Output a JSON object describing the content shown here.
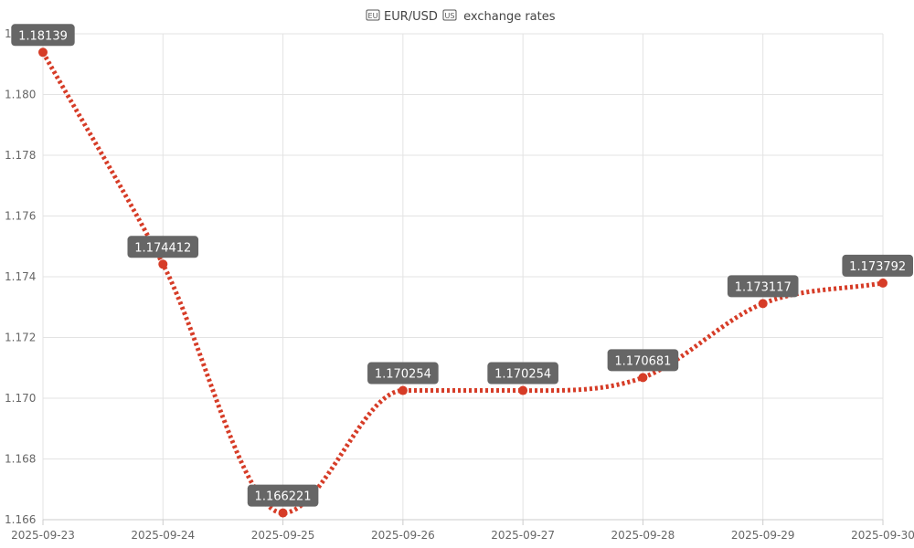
{
  "chart_data": {
    "type": "line",
    "title": "🇪🇺 EUR/USD 🇺🇸 exchange rates",
    "title_parts": {
      "currency_a": "EUR",
      "separator": "/",
      "currency_b": "USD",
      "suffix": " exchange rates"
    },
    "x": [
      "2025-09-23",
      "2025-09-24",
      "2025-09-25",
      "2025-09-26",
      "2025-09-27",
      "2025-09-28",
      "2025-09-29",
      "2025-09-30"
    ],
    "series": [
      {
        "values": [
          1.18139,
          1.174412,
          1.166221,
          1.170254,
          1.170254,
          1.170681,
          1.173117,
          1.173792
        ],
        "labels": [
          "1.18139",
          "1.174412",
          "1.166221",
          "1.170254",
          "1.170254",
          "1.170681",
          "1.173117",
          "1.173792"
        ],
        "color": "#d63c27",
        "line_style": "dotted",
        "smooth": true
      }
    ],
    "ylim": [
      1.166,
      1.182
    ],
    "yticks": [
      "1.166",
      "1.168",
      "1.170",
      "1.172",
      "1.174",
      "1.176",
      "1.178",
      "1.180",
      "1.182"
    ],
    "grid": true,
    "legend": "none",
    "label_background": "#666666"
  }
}
